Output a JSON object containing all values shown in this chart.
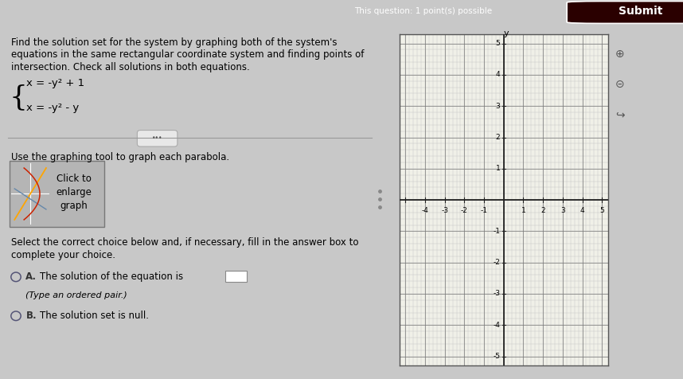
{
  "title_bar_color": "#8B0000",
  "bg_color": "#c8c8c8",
  "left_bg_color": "#c8c8c8",
  "question_text_line1": "Find the solution set for the system by graphing both of the system's",
  "question_text_line2": "equations in the same rectangular coordinate system and finding points of",
  "question_text_line3": "intersection. Check all solutions in both equations.",
  "eq1": "x = -y² + 1",
  "eq2": "x = -y² - y",
  "tool_text": "Use the graphing tool to graph each parabola.",
  "click_text_line1": "Click to",
  "click_text_line2": "enlarge",
  "click_text_line3": "graph",
  "select_text_line1": "Select the correct choice below and, if necessary, fill in the answer box to",
  "select_text_line2": "complete your choice.",
  "choice_a_text": "A.  The solution of the equation is",
  "type_text": "(Type an ordered pair.)",
  "choice_b_text": "B.  The solution set is null.",
  "title_center_text": "This question: 1 point(s) possible",
  "submit_text": "Submit",
  "grid_color": "#777777",
  "fine_grid_color": "#bbbbbb",
  "graph_bg": "#f0f0e8",
  "graph_border": "#555555",
  "axis_color": "#222222",
  "label_y": "y",
  "x_ticks": [
    -4,
    -3,
    -2,
    -1,
    1,
    2,
    3,
    4,
    5
  ],
  "y_ticks": [
    -5,
    -4,
    -3,
    -2,
    -1,
    1,
    2,
    3,
    4,
    5
  ],
  "font_size_q": 8.5,
  "font_size_eq": 9.5,
  "font_size_tick": 6.5,
  "divider_x": 0.555
}
